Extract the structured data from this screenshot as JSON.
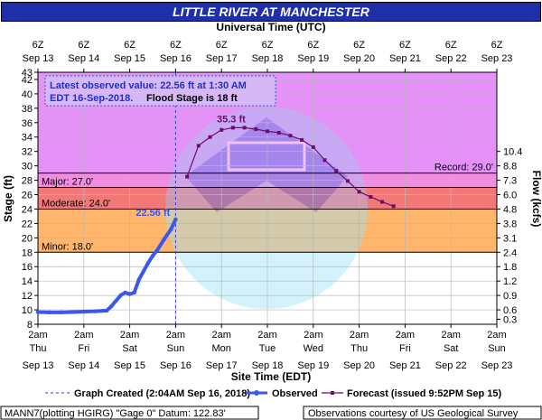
{
  "chart_data": {
    "type": "line",
    "title": "LITTLE RIVER AT MANCHESTER",
    "top_axis_title": "Universal Time (UTC)",
    "bottom_axis_title": "Site Time (EDT)",
    "ylabel": "Stage (ft)",
    "y2label": "Flow (kcfs)",
    "ylim": [
      8,
      43
    ],
    "y_ticks": [
      8,
      10,
      12,
      14,
      16,
      18,
      20,
      22,
      24,
      26,
      28,
      30,
      32,
      34,
      36,
      38,
      40,
      42,
      43
    ],
    "grid": true,
    "x_days": [
      "Sep 13",
      "Sep 14",
      "Sep 15",
      "Sep 16",
      "Sep 17",
      "Sep 18",
      "Sep 19",
      "Sep 20",
      "Sep 21",
      "Sep 22",
      "Sep 23"
    ],
    "bottom_ticks": [
      {
        "time": "2am",
        "dow": "Thu",
        "date": "Sep 13"
      },
      {
        "time": "2am",
        "dow": "Fri",
        "date": "Sep 14"
      },
      {
        "time": "2am",
        "dow": "Sat",
        "date": "Sep 15"
      },
      {
        "time": "2am",
        "dow": "Sun",
        "date": "Sep 16"
      },
      {
        "time": "2am",
        "dow": "Mon",
        "date": "Sep 17"
      },
      {
        "time": "2am",
        "dow": "Tue",
        "date": "Sep 18"
      },
      {
        "time": "2am",
        "dow": "Wed",
        "date": "Sep 19"
      },
      {
        "time": "2am",
        "dow": "Thu",
        "date": "Sep 20"
      },
      {
        "time": "2am",
        "dow": "Fri",
        "date": "Sep 21"
      },
      {
        "time": "2am",
        "dow": "Sat",
        "date": "Sep 22"
      },
      {
        "time": "2am",
        "dow": "Sun",
        "date": "Sep 23"
      }
    ],
    "top_ticks": [
      {
        "time": "6Z",
        "date": "Sep 13"
      },
      {
        "time": "6Z",
        "date": "Sep 14"
      },
      {
        "time": "6Z",
        "date": "Sep 15"
      },
      {
        "time": "6Z",
        "date": "Sep 16"
      },
      {
        "time": "6Z",
        "date": "Sep 17"
      },
      {
        "time": "6Z",
        "date": "Sep 18"
      },
      {
        "time": "6Z",
        "date": "Sep 19"
      },
      {
        "time": "6Z",
        "date": "Sep 20"
      },
      {
        "time": "6Z",
        "date": "Sep 21"
      },
      {
        "time": "6Z",
        "date": "Sep 22"
      },
      {
        "time": "6Z",
        "date": "Sep 23"
      }
    ],
    "flow_ticks": [
      {
        "stage": 10,
        "label": "0.6"
      },
      {
        "stage": 8.7,
        "label": "0.3"
      },
      {
        "stage": 12,
        "label": "0.9"
      },
      {
        "stage": 14,
        "label": "1.2"
      },
      {
        "stage": 16,
        "label": "1.8"
      },
      {
        "stage": 18,
        "label": "2.4"
      },
      {
        "stage": 20,
        "label": "3.1"
      },
      {
        "stage": 22,
        "label": "3.8"
      },
      {
        "stage": 24,
        "label": "4.8"
      },
      {
        "stage": 26,
        "label": "6.0"
      },
      {
        "stage": 28,
        "label": "7.3"
      },
      {
        "stage": 30,
        "label": "8.8"
      },
      {
        "stage": 32,
        "label": "10.4"
      }
    ],
    "flood_zones": [
      {
        "name": "Record",
        "label": "Record: 29.0'",
        "from": 29,
        "to": 43,
        "color": "#e492f8"
      },
      {
        "name": "Major",
        "label": "Major: 27.0'",
        "from": 27,
        "to": 29,
        "color": "#f08de0"
      },
      {
        "name": "Moderate",
        "label": "Moderate: 24.0'",
        "from": 24,
        "to": 27,
        "color": "#f27878"
      },
      {
        "name": "Minor",
        "label": "Minor: 18.0'",
        "from": 18,
        "to": 24,
        "color": "#fdb66b"
      }
    ],
    "series": [
      {
        "name": "Observed",
        "color": "#3a57f0",
        "x": [
          0,
          0.25,
          0.5,
          0.75,
          1.0,
          1.25,
          1.5,
          1.6,
          1.8,
          1.9,
          2.0,
          2.1,
          2.2,
          2.4,
          2.5,
          2.6,
          2.75,
          2.9,
          3.0
        ],
        "y": [
          9.7,
          9.65,
          9.65,
          9.7,
          9.75,
          9.8,
          9.9,
          10.5,
          12.0,
          12.4,
          12.2,
          12.4,
          14.2,
          16.5,
          17.5,
          18.3,
          19.8,
          21.2,
          22.56
        ]
      },
      {
        "name": "Forecast",
        "color": "#6b0f6b",
        "x": [
          3.25,
          3.5,
          3.75,
          4.0,
          4.25,
          4.5,
          4.75,
          5.0,
          5.25,
          5.5,
          5.75,
          6.0,
          6.25,
          6.5,
          6.75,
          7.0,
          7.25,
          7.5,
          7.75
        ],
        "y": [
          28.5,
          32.8,
          34.0,
          35.0,
          35.3,
          35.3,
          35.1,
          34.8,
          34.6,
          34.2,
          33.6,
          32.6,
          30.8,
          29.3,
          27.9,
          26.4,
          25.7,
          25.0,
          24.4
        ]
      }
    ],
    "annotations": {
      "latest_line1": "Latest observed value: 22.56 ft at 1:30 AM",
      "latest_line2": "EDT 16-Sep-2018.",
      "flood_stage": "Flood Stage is 18 ft",
      "observed_value_label": "22.56 ft",
      "peak_label": "35.3 ft",
      "graph_created_x": 3.0
    },
    "legend": {
      "graph_created": "Graph Created (2:04AM Sep 16, 2018)",
      "observed": "Observed",
      "forecast": "Forecast (issued 9:52PM Sep 15)"
    },
    "footer": {
      "left": "MANN7(plotting HGIRG) \"Gage 0\" Datum: 122.83'",
      "right": "Observations courtesy of US Geological Survey"
    }
  }
}
